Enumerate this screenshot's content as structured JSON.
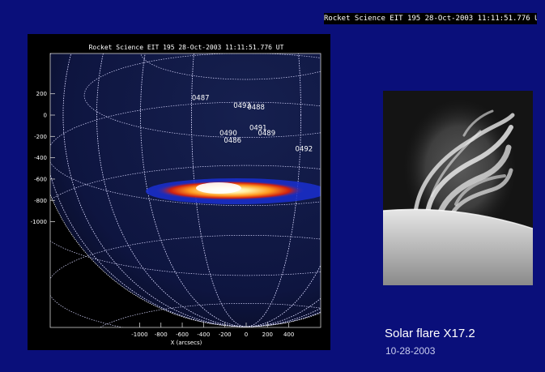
{
  "header": {
    "caption": "Rocket Science EIT 195 28-Oct-2003 11:11:51.776 UT"
  },
  "plot": {
    "title": "Rocket Science EIT 195 28-Oct-2003 11:11:51.776 UT",
    "xlabel": "X (arcsecs)",
    "x_ticks": [
      "-1000",
      "-800",
      "-600",
      "-400",
      "-200",
      "0",
      "200",
      "400"
    ],
    "y_ticks": [
      "200",
      "0",
      "-200",
      "-400",
      "-600",
      "-800",
      "-1000"
    ],
    "regions": [
      {
        "label": "0487",
        "x": -510,
        "y": 140
      },
      {
        "label": "0493",
        "x": -120,
        "y": 70
      },
      {
        "label": "0488",
        "x": 10,
        "y": 55
      },
      {
        "label": "0491",
        "x": 30,
        "y": -140
      },
      {
        "label": "0490",
        "x": -250,
        "y": -190
      },
      {
        "label": "0489",
        "x": 110,
        "y": -190
      },
      {
        "label": "0486",
        "x": -210,
        "y": -260
      },
      {
        "label": "0492",
        "x": 460,
        "y": -340
      }
    ]
  },
  "inset": {
    "title": "Solar flare X17.2",
    "date": "10-28-2003"
  },
  "colors": {
    "background": "#0a0f7a",
    "panel": "#000000",
    "flare": "#ffe680"
  }
}
